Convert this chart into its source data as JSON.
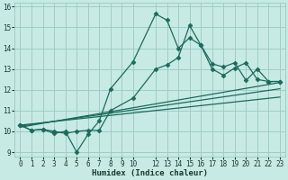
{
  "xlabel": "Humidex (Indice chaleur)",
  "xlim": [
    -0.5,
    23.5
  ],
  "ylim": [
    8.8,
    16.2
  ],
  "xticks": [
    0,
    1,
    2,
    3,
    4,
    5,
    6,
    7,
    8,
    9,
    10,
    12,
    13,
    14,
    15,
    16,
    17,
    18,
    19,
    20,
    21,
    22,
    23
  ],
  "xticklabels": [
    "0",
    "1",
    "2",
    "3",
    "4",
    "5",
    "6",
    "7",
    "8",
    "9",
    "10",
    "12",
    "13",
    "14",
    "15",
    "16",
    "17",
    "18",
    "19",
    "20",
    "21",
    "22",
    "23"
  ],
  "yticks": [
    9,
    10,
    11,
    12,
    13,
    14,
    15,
    16
  ],
  "bg_color": "#c8eae4",
  "grid_color": "#9dcec6",
  "line_color": "#1a6b5a",
  "series1_x": [
    0,
    1,
    2,
    3,
    4,
    5,
    6,
    7,
    8,
    10,
    12,
    13,
    14,
    15,
    16,
    17,
    18,
    19,
    20,
    21,
    22,
    23
  ],
  "series1_y": [
    10.3,
    10.05,
    10.1,
    9.9,
    10.0,
    9.0,
    9.85,
    10.5,
    12.05,
    13.35,
    15.65,
    15.35,
    14.0,
    14.5,
    14.15,
    13.0,
    12.7,
    13.05,
    13.3,
    12.5,
    12.4,
    12.4
  ],
  "series2_x": [
    0,
    1,
    2,
    3,
    4,
    5,
    6,
    7,
    8,
    10,
    12,
    13,
    14,
    15,
    16,
    17,
    18,
    19,
    20,
    21,
    22,
    23
  ],
  "series2_y": [
    10.3,
    10.05,
    10.1,
    10.0,
    9.9,
    10.0,
    10.05,
    10.05,
    11.0,
    11.6,
    13.0,
    13.2,
    13.55,
    15.1,
    14.15,
    13.25,
    13.1,
    13.3,
    12.45,
    13.0,
    12.4,
    12.4
  ],
  "line3_x": [
    0,
    23
  ],
  "line3_y": [
    10.2,
    12.35
  ],
  "line4_x": [
    0,
    23
  ],
  "line4_y": [
    10.25,
    12.05
  ],
  "line5_x": [
    0,
    23
  ],
  "line5_y": [
    10.3,
    11.65
  ]
}
